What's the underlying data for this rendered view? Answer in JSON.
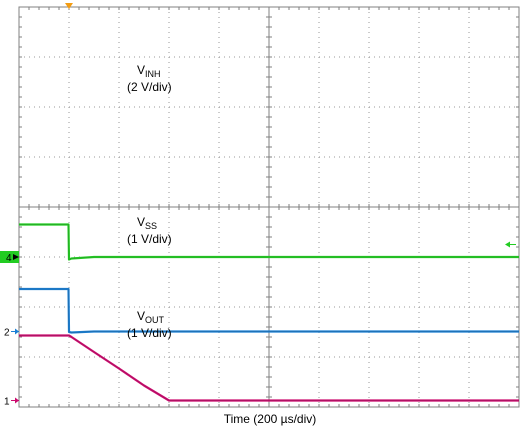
{
  "chart_data": {
    "type": "line",
    "xlabel": "Time (200 µs/div)",
    "x_divisions": 10,
    "y_divisions": 8,
    "x": [
      0,
      0.99,
      1.0,
      1.05,
      1.5,
      2.0,
      2.5,
      3.0,
      3.5,
      4.0,
      4.5,
      5.0,
      6.0,
      7.0,
      8.0,
      9.0,
      10.0
    ],
    "series": [
      {
        "id": "vinh",
        "label_main": "V",
        "label_sub": "INH",
        "label_scale": "(2 V/div)",
        "marker": "4",
        "color": "#22cc22",
        "values": [
          3.65,
          3.65,
          2.95,
          2.97,
          3.0,
          3.0,
          3.0,
          3.0,
          3.0,
          3.0,
          3.0,
          3.0,
          3.0,
          3.0,
          3.0,
          3.0,
          3.0
        ]
      },
      {
        "id": "vss",
        "label_main": "V",
        "label_sub": "SS",
        "label_scale": "(1 V/div)",
        "marker": "2",
        "color": "#1a7fd4",
        "values": [
          2.36,
          2.36,
          1.5,
          1.49,
          1.51,
          1.51,
          1.51,
          1.51,
          1.51,
          1.51,
          1.51,
          1.51,
          1.51,
          1.51,
          1.51,
          1.51,
          1.51
        ]
      },
      {
        "id": "vout",
        "label_main": "V",
        "label_sub": "OUT",
        "label_scale": "(1 V/div)",
        "marker": "1",
        "color": "#cc0a6e",
        "values": [
          1.43,
          1.43,
          1.43,
          1.4,
          1.1,
          0.77,
          0.43,
          0.13,
          0.13,
          0.13,
          0.13,
          0.13,
          0.13,
          0.13,
          0.13,
          0.13,
          0.13
        ]
      }
    ],
    "trigger_color": "#f39c12",
    "vinh_arrow_color": "#22cc22"
  }
}
